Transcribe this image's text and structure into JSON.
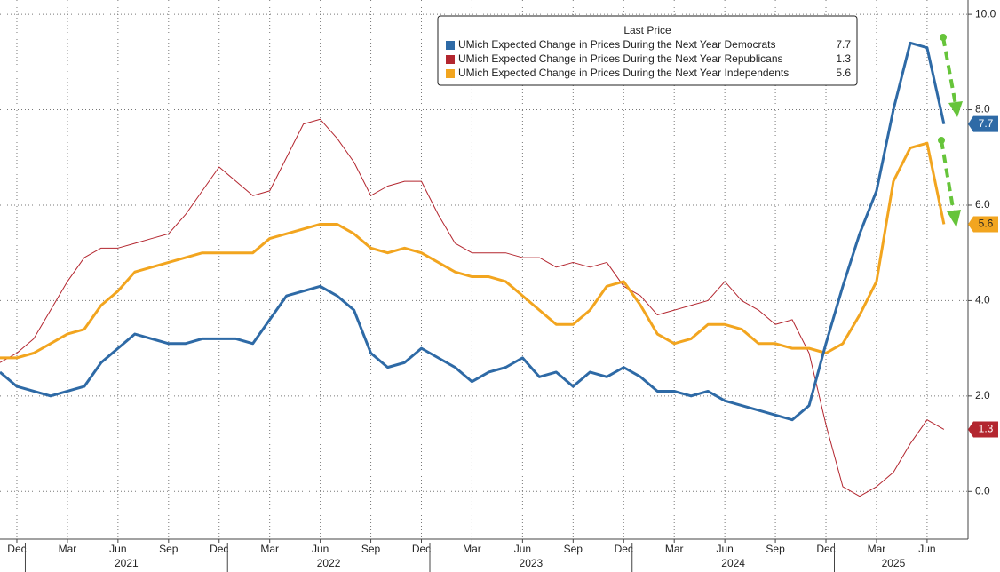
{
  "chart_data": {
    "type": "line",
    "legend_title": "Last Price",
    "x": [
      "2020-11",
      "2020-12",
      "2021-01",
      "2021-02",
      "2021-03",
      "2021-04",
      "2021-05",
      "2021-06",
      "2021-07",
      "2021-08",
      "2021-09",
      "2021-10",
      "2021-11",
      "2021-12",
      "2022-01",
      "2022-02",
      "2022-03",
      "2022-04",
      "2022-05",
      "2022-06",
      "2022-07",
      "2022-08",
      "2022-09",
      "2022-10",
      "2022-11",
      "2022-12",
      "2023-01",
      "2023-02",
      "2023-03",
      "2023-04",
      "2023-05",
      "2023-06",
      "2023-07",
      "2023-08",
      "2023-09",
      "2023-10",
      "2023-11",
      "2023-12",
      "2024-01",
      "2024-02",
      "2024-03",
      "2024-04",
      "2024-05",
      "2024-06",
      "2024-07",
      "2024-08",
      "2024-09",
      "2024-10",
      "2024-11",
      "2024-12",
      "2025-01",
      "2025-02",
      "2025-03",
      "2025-04",
      "2025-05",
      "2025-06",
      "2025-07"
    ],
    "xticks": [
      {
        "value": "2020-12",
        "label": "Dec"
      },
      {
        "value": "2021-03",
        "label": "Mar"
      },
      {
        "value": "2021-06",
        "label": "Jun"
      },
      {
        "value": "2021-09",
        "label": "Sep"
      },
      {
        "value": "2021-12",
        "label": "Dec"
      },
      {
        "value": "2022-03",
        "label": "Mar"
      },
      {
        "value": "2022-06",
        "label": "Jun"
      },
      {
        "value": "2022-09",
        "label": "Sep"
      },
      {
        "value": "2022-12",
        "label": "Dec"
      },
      {
        "value": "2023-03",
        "label": "Mar"
      },
      {
        "value": "2023-06",
        "label": "Jun"
      },
      {
        "value": "2023-09",
        "label": "Sep"
      },
      {
        "value": "2023-12",
        "label": "Dec"
      },
      {
        "value": "2024-03",
        "label": "Mar"
      },
      {
        "value": "2024-06",
        "label": "Jun"
      },
      {
        "value": "2024-09",
        "label": "Sep"
      },
      {
        "value": "2024-12",
        "label": "Dec"
      },
      {
        "value": "2025-03",
        "label": "Mar"
      },
      {
        "value": "2025-06",
        "label": "Jun"
      }
    ],
    "years": [
      "2021",
      "2022",
      "2023",
      "2024",
      "2025"
    ],
    "ylim": [
      -1,
      10.3
    ],
    "yticks": [
      {
        "value": 0,
        "label": "0.0"
      },
      {
        "value": 2,
        "label": "2.0"
      },
      {
        "value": 4,
        "label": "4.0"
      },
      {
        "value": 6,
        "label": "6.0"
      },
      {
        "value": 8,
        "label": "8.0"
      },
      {
        "value": 10,
        "label": "10.0"
      }
    ],
    "grid": true,
    "series": [
      {
        "name": "UMich Expected Change in Prices During the Next Year Democrats",
        "color": "#2e6aa6",
        "width": 3,
        "values": [
          2.5,
          2.2,
          2.1,
          2.0,
          2.1,
          2.2,
          2.7,
          3.0,
          3.3,
          3.2,
          3.1,
          3.1,
          3.2,
          3.2,
          3.2,
          3.1,
          3.6,
          4.1,
          4.2,
          4.3,
          4.1,
          3.8,
          2.9,
          2.6,
          2.7,
          3.0,
          2.8,
          2.6,
          2.3,
          2.5,
          2.6,
          2.8,
          2.4,
          2.5,
          2.2,
          2.5,
          2.4,
          2.6,
          2.4,
          2.1,
          2.1,
          2.0,
          2.1,
          1.9,
          1.8,
          1.7,
          1.6,
          1.5,
          1.8,
          3.1,
          4.3,
          5.4,
          6.3,
          8.0,
          9.4,
          9.3,
          7.7
        ]
      },
      {
        "name": "UMich Expected Change in Prices During the Next Year Republicans",
        "color": "#b3262f",
        "width": 1,
        "values": [
          2.7,
          2.9,
          3.2,
          3.8,
          4.4,
          4.9,
          5.1,
          5.1,
          5.2,
          5.3,
          5.4,
          5.8,
          6.3,
          6.8,
          6.5,
          6.2,
          6.3,
          7.0,
          7.7,
          7.8,
          7.4,
          6.9,
          6.2,
          6.4,
          6.5,
          6.5,
          5.8,
          5.2,
          5.0,
          5.0,
          5.0,
          4.9,
          4.9,
          4.7,
          4.8,
          4.7,
          4.8,
          4.3,
          4.1,
          3.7,
          3.8,
          3.9,
          4.0,
          4.4,
          4.0,
          3.8,
          3.5,
          3.6,
          2.9,
          1.4,
          0.1,
          -0.1,
          0.1,
          0.4,
          1.0,
          1.5,
          1.3
        ]
      },
      {
        "name": "UMich Expected Change in Prices During the Next Year Independents",
        "color": "#f2a51f",
        "width": 3,
        "values": [
          2.8,
          2.8,
          2.9,
          3.1,
          3.3,
          3.4,
          3.9,
          4.2,
          4.6,
          4.7,
          4.8,
          4.9,
          5.0,
          5.0,
          5.0,
          5.0,
          5.3,
          5.4,
          5.5,
          5.6,
          5.6,
          5.4,
          5.1,
          5.0,
          5.1,
          5.0,
          4.8,
          4.6,
          4.5,
          4.5,
          4.4,
          4.1,
          3.8,
          3.5,
          3.5,
          3.8,
          4.3,
          4.4,
          3.9,
          3.3,
          3.1,
          3.2,
          3.5,
          3.5,
          3.4,
          3.1,
          3.1,
          3.0,
          3.0,
          2.9,
          3.1,
          3.7,
          4.4,
          6.5,
          7.2,
          7.3,
          5.6
        ]
      }
    ]
  }
}
